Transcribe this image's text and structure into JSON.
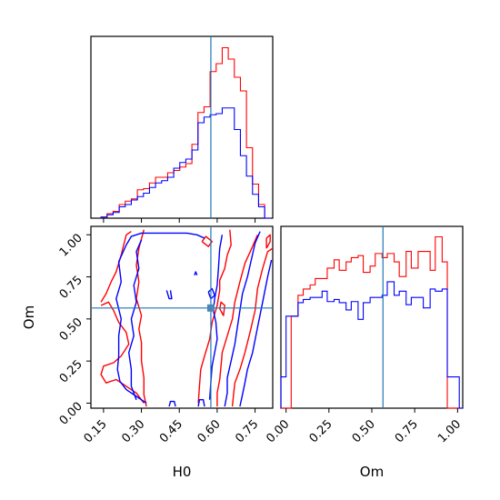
{
  "colors": {
    "series_red": "#ff0000",
    "series_blue": "#0000ff",
    "truth_line": "#1f77b4",
    "truth_marker": "#4a86b8",
    "frame": "#000000"
  },
  "chart_data": [
    {
      "type": "histogram",
      "panel": "H0 marginal",
      "x_param": "H0",
      "xlim": [
        0.1,
        0.82
      ],
      "bin_edges": [
        0.14,
        0.164,
        0.188,
        0.212,
        0.236,
        0.26,
        0.284,
        0.308,
        0.332,
        0.356,
        0.38,
        0.404,
        0.428,
        0.452,
        0.476,
        0.5,
        0.524,
        0.548,
        0.572,
        0.596,
        0.62,
        0.644,
        0.668,
        0.692,
        0.716,
        0.74,
        0.764,
        0.788,
        0.812
      ],
      "series": [
        {
          "color": "red",
          "values": [
            1,
            4,
            6,
            12,
            15,
            17,
            25,
            26,
            31,
            36,
            36,
            40,
            42,
            45,
            48,
            65,
            93,
            98,
            129,
            136,
            150,
            140,
            124,
            112,
            62,
            30,
            12,
            0
          ]
        },
        {
          "color": "blue",
          "values": [
            1,
            3,
            5,
            10,
            12,
            16,
            19,
            22,
            27,
            31,
            33,
            36,
            44,
            49,
            52,
            60,
            84,
            89,
            91,
            92,
            97,
            97,
            78,
            55,
            37,
            21,
            10,
            0
          ]
        }
      ],
      "truth_value": 0.575,
      "grid": false
    },
    {
      "type": "contour",
      "panel": "H0 vs Om joint",
      "xlabel": "H0",
      "ylabel": "Om",
      "xlim": [
        0.1,
        0.82
      ],
      "ylim": [
        -0.03,
        1.05
      ],
      "xticks": [
        "0.15",
        "0.30",
        "0.45",
        "0.60",
        "0.75"
      ],
      "yticks": [
        "0.00",
        "0.25",
        "0.50",
        "0.75",
        "1.00"
      ],
      "series": [
        {
          "color": "red",
          "contours": [
            [
              [
                0.14,
                0.6
              ],
              [
                0.16,
                0.65
              ],
              [
                0.18,
                0.72
              ],
              [
                0.2,
                0.78
              ],
              [
                0.22,
                0.88
              ],
              [
                0.24,
                1.0
              ],
              [
                0.26,
                1.02
              ]
            ],
            [
              [
                0.14,
                0.58
              ],
              [
                0.17,
                0.6
              ],
              [
                0.19,
                0.55
              ],
              [
                0.21,
                0.48
              ],
              [
                0.24,
                0.42
              ],
              [
                0.25,
                0.35
              ],
              [
                0.22,
                0.28
              ],
              [
                0.19,
                0.24
              ],
              [
                0.15,
                0.22
              ],
              [
                0.14,
                0.17
              ],
              [
                0.16,
                0.12
              ],
              [
                0.2,
                0.14
              ],
              [
                0.24,
                0.1
              ],
              [
                0.28,
                0.06
              ],
              [
                0.31,
                0.0
              ]
            ],
            [
              [
                0.31,
                1.03
              ],
              [
                0.29,
                0.92
              ],
              [
                0.28,
                0.82
              ],
              [
                0.29,
                0.72
              ],
              [
                0.28,
                0.62
              ],
              [
                0.3,
                0.52
              ],
              [
                0.29,
                0.44
              ],
              [
                0.3,
                0.36
              ],
              [
                0.3,
                0.25
              ],
              [
                0.31,
                0.15
              ],
              [
                0.31,
                0.05
              ],
              [
                0.32,
                -0.02
              ]
            ],
            [
              [
                0.525,
                0.0
              ],
              [
                0.53,
                0.1
              ],
              [
                0.535,
                0.2
              ],
              [
                0.55,
                0.28
              ],
              [
                0.57,
                0.38
              ],
              [
                0.58,
                0.48
              ],
              [
                0.6,
                0.58
              ],
              [
                0.61,
                0.67
              ],
              [
                0.61,
                0.73
              ],
              [
                0.63,
                0.8
              ],
              [
                0.64,
                0.88
              ],
              [
                0.655,
                0.94
              ],
              [
                0.65,
                1.03
              ]
            ],
            [
              [
                0.6,
                -0.02
              ],
              [
                0.6,
                0.06
              ],
              [
                0.61,
                0.14
              ],
              [
                0.615,
                0.22
              ],
              [
                0.62,
                0.3
              ],
              [
                0.64,
                0.4
              ],
              [
                0.66,
                0.5
              ],
              [
                0.67,
                0.6
              ],
              [
                0.69,
                0.72
              ],
              [
                0.71,
                0.83
              ],
              [
                0.74,
                0.93
              ],
              [
                0.76,
                1.0
              ]
            ],
            [
              [
                0.66,
                -0.02
              ],
              [
                0.665,
                0.05
              ],
              [
                0.67,
                0.12
              ],
              [
                0.69,
                0.2
              ],
              [
                0.71,
                0.3
              ],
              [
                0.73,
                0.42
              ],
              [
                0.75,
                0.55
              ],
              [
                0.76,
                0.68
              ],
              [
                0.78,
                0.8
              ],
              [
                0.8,
                0.9
              ],
              [
                0.82,
                0.92
              ]
            ],
            [
              [
                0.54,
                0.96
              ],
              [
                0.565,
                0.93
              ],
              [
                0.58,
                0.96
              ],
              [
                0.555,
                0.99
              ],
              [
                0.54,
                0.96
              ]
            ],
            [
              [
                0.61,
                0.56
              ],
              [
                0.625,
                0.52
              ],
              [
                0.63,
                0.58
              ],
              [
                0.615,
                0.6
              ],
              [
                0.61,
                0.56
              ]
            ],
            [
              [
                0.795,
                0.92
              ],
              [
                0.81,
                0.96
              ],
              [
                0.81,
                1.0
              ],
              [
                0.795,
                0.98
              ],
              [
                0.795,
                0.92
              ]
            ]
          ]
        },
        {
          "color": "blue",
          "contours": [
            [
              [
                0.215,
                0.13
              ],
              [
                0.205,
                0.2
              ],
              [
                0.21,
                0.28
              ],
              [
                0.21,
                0.4
              ],
              [
                0.22,
                0.5
              ],
              [
                0.2,
                0.62
              ],
              [
                0.22,
                0.72
              ],
              [
                0.21,
                0.84
              ],
              [
                0.24,
                0.94
              ],
              [
                0.26,
                0.99
              ],
              [
                0.3,
                1.01
              ],
              [
                0.36,
                1.01
              ],
              [
                0.42,
                1.01
              ],
              [
                0.48,
                1.01
              ],
              [
                0.52,
                1.0
              ],
              [
                0.55,
                0.98
              ]
            ],
            [
              [
                0.215,
                0.13
              ],
              [
                0.24,
                0.08
              ],
              [
                0.28,
                0.04
              ],
              [
                0.32,
                0.0
              ]
            ],
            [
              [
                0.28,
                0.02
              ],
              [
                0.26,
                0.1
              ],
              [
                0.26,
                0.2
              ],
              [
                0.25,
                0.3
              ],
              [
                0.27,
                0.4
              ],
              [
                0.26,
                0.5
              ],
              [
                0.28,
                0.6
              ],
              [
                0.27,
                0.7
              ],
              [
                0.29,
                0.8
              ],
              [
                0.28,
                0.9
              ],
              [
                0.3,
                0.97
              ]
            ],
            [
              [
                0.41,
                -0.02
              ],
              [
                0.415,
                0.01
              ],
              [
                0.43,
                0.01
              ],
              [
                0.435,
                -0.02
              ]
            ],
            [
              [
                0.525,
                -0.02
              ],
              [
                0.53,
                0.02
              ],
              [
                0.545,
                0.02
              ],
              [
                0.55,
                -0.02
              ]
            ],
            [
              [
                0.63,
                -0.02
              ],
              [
                0.64,
                0.06
              ],
              [
                0.64,
                0.15
              ],
              [
                0.655,
                0.25
              ],
              [
                0.67,
                0.35
              ],
              [
                0.68,
                0.45
              ],
              [
                0.69,
                0.55
              ],
              [
                0.7,
                0.65
              ],
              [
                0.72,
                0.75
              ],
              [
                0.735,
                0.85
              ],
              [
                0.75,
                0.95
              ],
              [
                0.77,
                1.02
              ]
            ],
            [
              [
                0.57,
                0.02
              ],
              [
                0.575,
                0.12
              ],
              [
                0.58,
                0.22
              ],
              [
                0.59,
                0.3
              ],
              [
                0.6,
                0.38
              ],
              [
                0.595,
                0.48
              ],
              [
                0.585,
                0.55
              ],
              [
                0.59,
                0.62
              ],
              [
                0.6,
                0.7
              ],
              [
                0.605,
                0.8
              ],
              [
                0.61,
                0.92
              ],
              [
                0.62,
                1.0
              ]
            ],
            [
              [
                0.69,
                -0.02
              ],
              [
                0.7,
                0.05
              ],
              [
                0.71,
                0.12
              ],
              [
                0.72,
                0.2
              ],
              [
                0.74,
                0.3
              ],
              [
                0.76,
                0.45
              ],
              [
                0.78,
                0.6
              ],
              [
                0.8,
                0.75
              ],
              [
                0.815,
                0.85
              ]
            ],
            [
              [
                0.4,
                0.67
              ],
              [
                0.41,
                0.62
              ],
              [
                0.42,
                0.62
              ],
              [
                0.415,
                0.67
              ]
            ],
            [
              [
                0.51,
                0.76
              ],
              [
                0.515,
                0.78
              ],
              [
                0.52,
                0.76
              ]
            ],
            [
              [
                0.565,
                0.66
              ],
              [
                0.575,
                0.62
              ],
              [
                0.59,
                0.64
              ],
              [
                0.58,
                0.68
              ],
              [
                0.565,
                0.66
              ]
            ]
          ]
        }
      ],
      "truth_point": {
        "x": 0.575,
        "y": 0.565
      },
      "grid": false
    },
    {
      "type": "histogram",
      "panel": "Om marginal",
      "xlabel": "Om",
      "x_param": "Om",
      "xlim": [
        -0.03,
        1.03
      ],
      "xticks": [
        "0.00",
        "0.25",
        "0.50",
        "0.75",
        "1.00"
      ],
      "bin_edges": [
        -0.03,
        0.0,
        0.03,
        0.07,
        0.1,
        0.14,
        0.17,
        0.21,
        0.24,
        0.28,
        0.31,
        0.35,
        0.38,
        0.42,
        0.45,
        0.49,
        0.52,
        0.56,
        0.59,
        0.63,
        0.66,
        0.7,
        0.73,
        0.77,
        0.8,
        0.84,
        0.87,
        0.91,
        0.94,
        0.98,
        1.01,
        1.03
      ],
      "series": [
        {
          "color": "red",
          "values": [
            0,
            0,
            88,
            108,
            114,
            118,
            124,
            124,
            134,
            142,
            132,
            140,
            144,
            146,
            130,
            136,
            148,
            144,
            148,
            140,
            126,
            150,
            134,
            150,
            150,
            132,
            164,
            140,
            0,
            0,
            0
          ]
        },
        {
          "color": "blue",
          "values": [
            30,
            88,
            88,
            101,
            104,
            106,
            106,
            112,
            102,
            104,
            101,
            94,
            102,
            85,
            101,
            106,
            106,
            108,
            121,
            108,
            112,
            99,
            106,
            106,
            96,
            114,
            112,
            114,
            30,
            30,
            0
          ]
        }
      ],
      "truth_value": 0.565,
      "grid": false
    }
  ]
}
